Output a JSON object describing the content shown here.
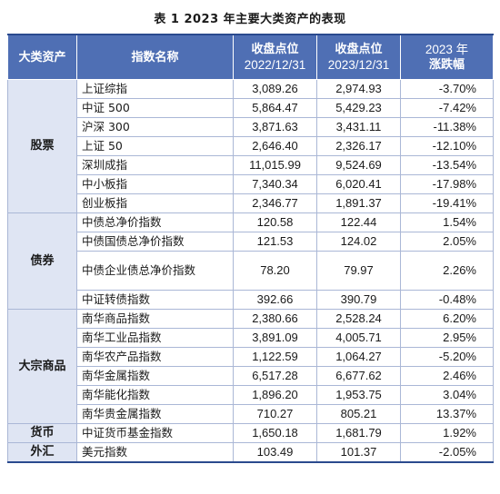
{
  "title": "表 1   2023 年主要大类资产的表现",
  "headers": {
    "asset_class": "大类资产",
    "index_name": "指数名称",
    "close_2022_line1": "收盘点位",
    "close_2022_line2": "2022/12/31",
    "close_2023_line1": "收盘点位",
    "close_2023_line2": "2023/12/31",
    "change_line1": "2023 年",
    "change_line2": "涨跌幅"
  },
  "groups": [
    {
      "category": "股票",
      "rows": [
        {
          "name": "上证综指",
          "close_2022": "3,089.26",
          "close_2023": "2,974.93",
          "change": "-3.70%"
        },
        {
          "name": "中证 500",
          "close_2022": "5,864.47",
          "close_2023": "5,429.23",
          "change": "-7.42%"
        },
        {
          "name": "沪深 300",
          "close_2022": "3,871.63",
          "close_2023": "3,431.11",
          "change": "-11.38%"
        },
        {
          "name": "上证 50",
          "close_2022": "2,646.40",
          "close_2023": "2,326.17",
          "change": "-12.10%"
        },
        {
          "name": "深圳成指",
          "close_2022": "11,015.99",
          "close_2023": "9,524.69",
          "change": "-13.54%"
        },
        {
          "name": "中小板指",
          "close_2022": "7,340.34",
          "close_2023": "6,020.41",
          "change": "-17.98%"
        },
        {
          "name": "创业板指",
          "close_2022": "2,346.77",
          "close_2023": "1,891.37",
          "change": "-19.41%"
        }
      ]
    },
    {
      "category": "债券",
      "rows": [
        {
          "name": "中债总净价指数",
          "close_2022": "120.58",
          "close_2023": "122.44",
          "change": "1.54%"
        },
        {
          "name": "中债国债总净价指数",
          "close_2022": "121.53",
          "close_2023": "124.02",
          "change": "2.05%"
        },
        {
          "name": "中债企业债总净价指数",
          "close_2022": "78.20",
          "close_2023": "79.97",
          "change": "2.26%"
        },
        {
          "name": "中证转债指数",
          "close_2022": "392.66",
          "close_2023": "390.79",
          "change": "-0.48%"
        }
      ]
    },
    {
      "category": "大宗商品",
      "rows": [
        {
          "name": "南华商品指数",
          "close_2022": "2,380.66",
          "close_2023": "2,528.24",
          "change": "6.20%"
        },
        {
          "name": "南华工业品指数",
          "close_2022": "3,891.09",
          "close_2023": "4,005.71",
          "change": "2.95%"
        },
        {
          "name": "南华农产品指数",
          "close_2022": "1,122.59",
          "close_2023": "1,064.27",
          "change": "-5.20%"
        },
        {
          "name": "南华金属指数",
          "close_2022": "6,517.28",
          "close_2023": "6,677.62",
          "change": "2.46%"
        },
        {
          "name": "南华能化指数",
          "close_2022": "1,896.20",
          "close_2023": "1,953.75",
          "change": "3.04%"
        },
        {
          "name": "南华贵金属指数",
          "close_2022": "710.27",
          "close_2023": "805.21",
          "change": "13.37%"
        }
      ]
    },
    {
      "category": "货币",
      "rows": [
        {
          "name": "中证货币基金指数",
          "close_2022": "1,650.18",
          "close_2023": "1,681.79",
          "change": "1.92%"
        }
      ]
    },
    {
      "category": "外汇",
      "rows": [
        {
          "name": "美元指数",
          "close_2022": "103.49",
          "close_2023": "101.37",
          "change": "-2.05%"
        }
      ]
    }
  ]
}
